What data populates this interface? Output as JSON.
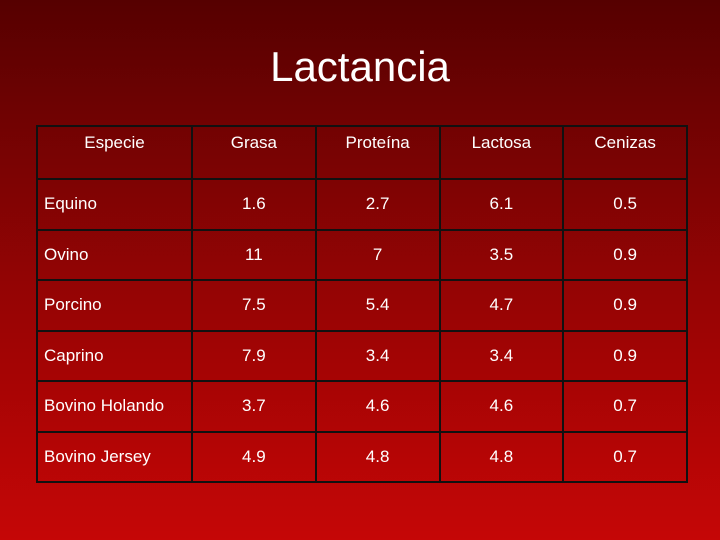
{
  "title": "Lactancia",
  "table": {
    "headers": [
      "Especie",
      "Grasa",
      "Proteína",
      "Lactosa",
      "Cenizas"
    ],
    "rows": [
      [
        "Equino",
        "1.6",
        "2.7",
        "6.1",
        "0.5"
      ],
      [
        "Ovino",
        "11",
        "7",
        "3.5",
        "0.9"
      ],
      [
        "Porcino",
        "7.5",
        "5.4",
        "4.7",
        "0.9"
      ],
      [
        "Caprino",
        "7.9",
        "3.4",
        "3.4",
        "0.9"
      ],
      [
        "Bovino Holando",
        "3.7",
        "4.6",
        "4.6",
        "0.7"
      ],
      [
        "Bovino Jersey",
        "4.9",
        "4.8",
        "4.8",
        "0.7"
      ]
    ]
  }
}
